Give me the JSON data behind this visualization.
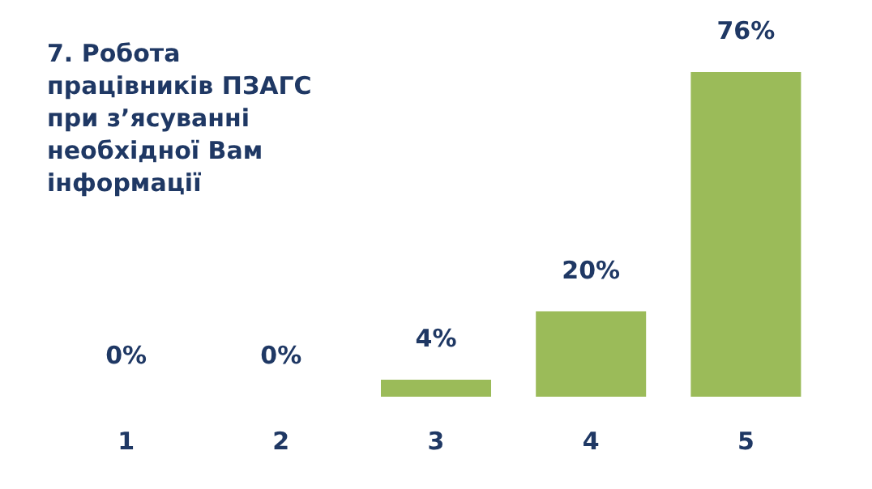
{
  "chart_data": {
    "type": "bar",
    "title": "7. Робота працівників ПЗАГС при з’ясуванні необхідної Вам інформації",
    "categories": [
      "1",
      "2",
      "3",
      "4",
      "5"
    ],
    "values": [
      0,
      0,
      4,
      20,
      76
    ],
    "value_labels": [
      "0%",
      "0%",
      "4%",
      "20%",
      "76%"
    ],
    "color": "#9bbb59"
  }
}
